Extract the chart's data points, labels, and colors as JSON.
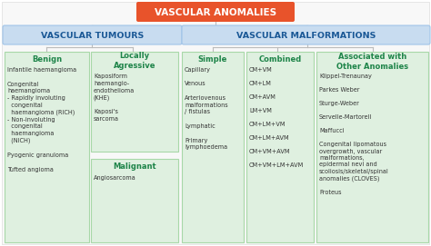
{
  "title": "VASCULAR ANOMALIES",
  "title_bg": "#E8532B",
  "title_text_color": "#FFFFFF",
  "level2_bg": "#C8DCF0",
  "level2_border": "#A0C4E8",
  "level2_text_color": "#1A5896",
  "level3_bg": "#DFF0E0",
  "level3_border": "#A8D8A8",
  "level3_text_color": "#1E8449",
  "body_text_color": "#333333",
  "line_color": "#BBBBBB",
  "background_color": "#FFFFFF",
  "vascular_tumours_label": "VASCULAR TUMOURS",
  "vascular_malformations_label": "VASCULAR MALFORMATIONS",
  "fig_w": 4.74,
  "fig_h": 2.71,
  "dpi": 100
}
